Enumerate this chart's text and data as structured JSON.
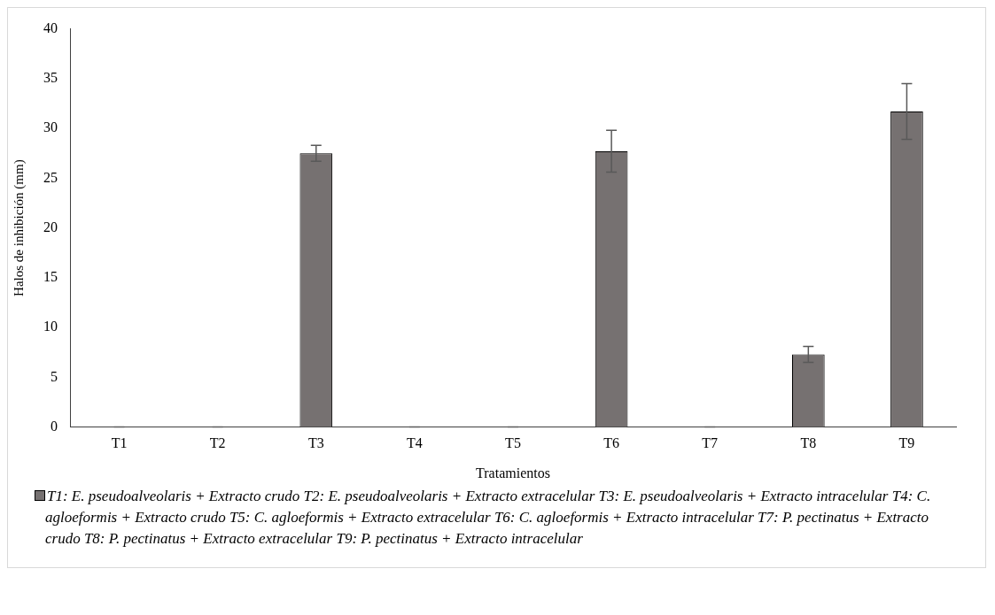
{
  "chart_data": {
    "type": "bar",
    "xlabel": "Tratamientos",
    "ylabel": "Halos de inhibición (mm)",
    "categories": [
      "T1",
      "T2",
      "T3",
      "T4",
      "T5",
      "T6",
      "T7",
      "T8",
      "T9"
    ],
    "series": [
      {
        "name": "T1: E. pseudoalveolaris + Extracto crudo T2: E. pseudoalveolaris + Extracto extracelular T3: E. pseudoalveolaris + Extracto intracelular T4: C. agloeformis + Extracto crudo T5: C. agloeformis + Extracto extracelular T6: C. agloeformis + Extracto intracelular T7: P. pectinatus + Extracto crudo T8: P. pectinatus + Extracto extracelular T9: P. pectinatus + Extracto intracelular",
        "color": "#767171",
        "values": [
          0,
          0,
          27.5,
          0,
          0,
          27.7,
          0,
          7.3,
          31.7
        ],
        "errors": [
          0,
          0,
          0.8,
          0,
          0,
          2.1,
          0,
          0.8,
          2.8
        ]
      }
    ],
    "ylim": [
      0,
      40
    ],
    "yticks": [
      0,
      5,
      10,
      15,
      20,
      25,
      30,
      35,
      40
    ],
    "grid": false,
    "legend": "bottom"
  }
}
